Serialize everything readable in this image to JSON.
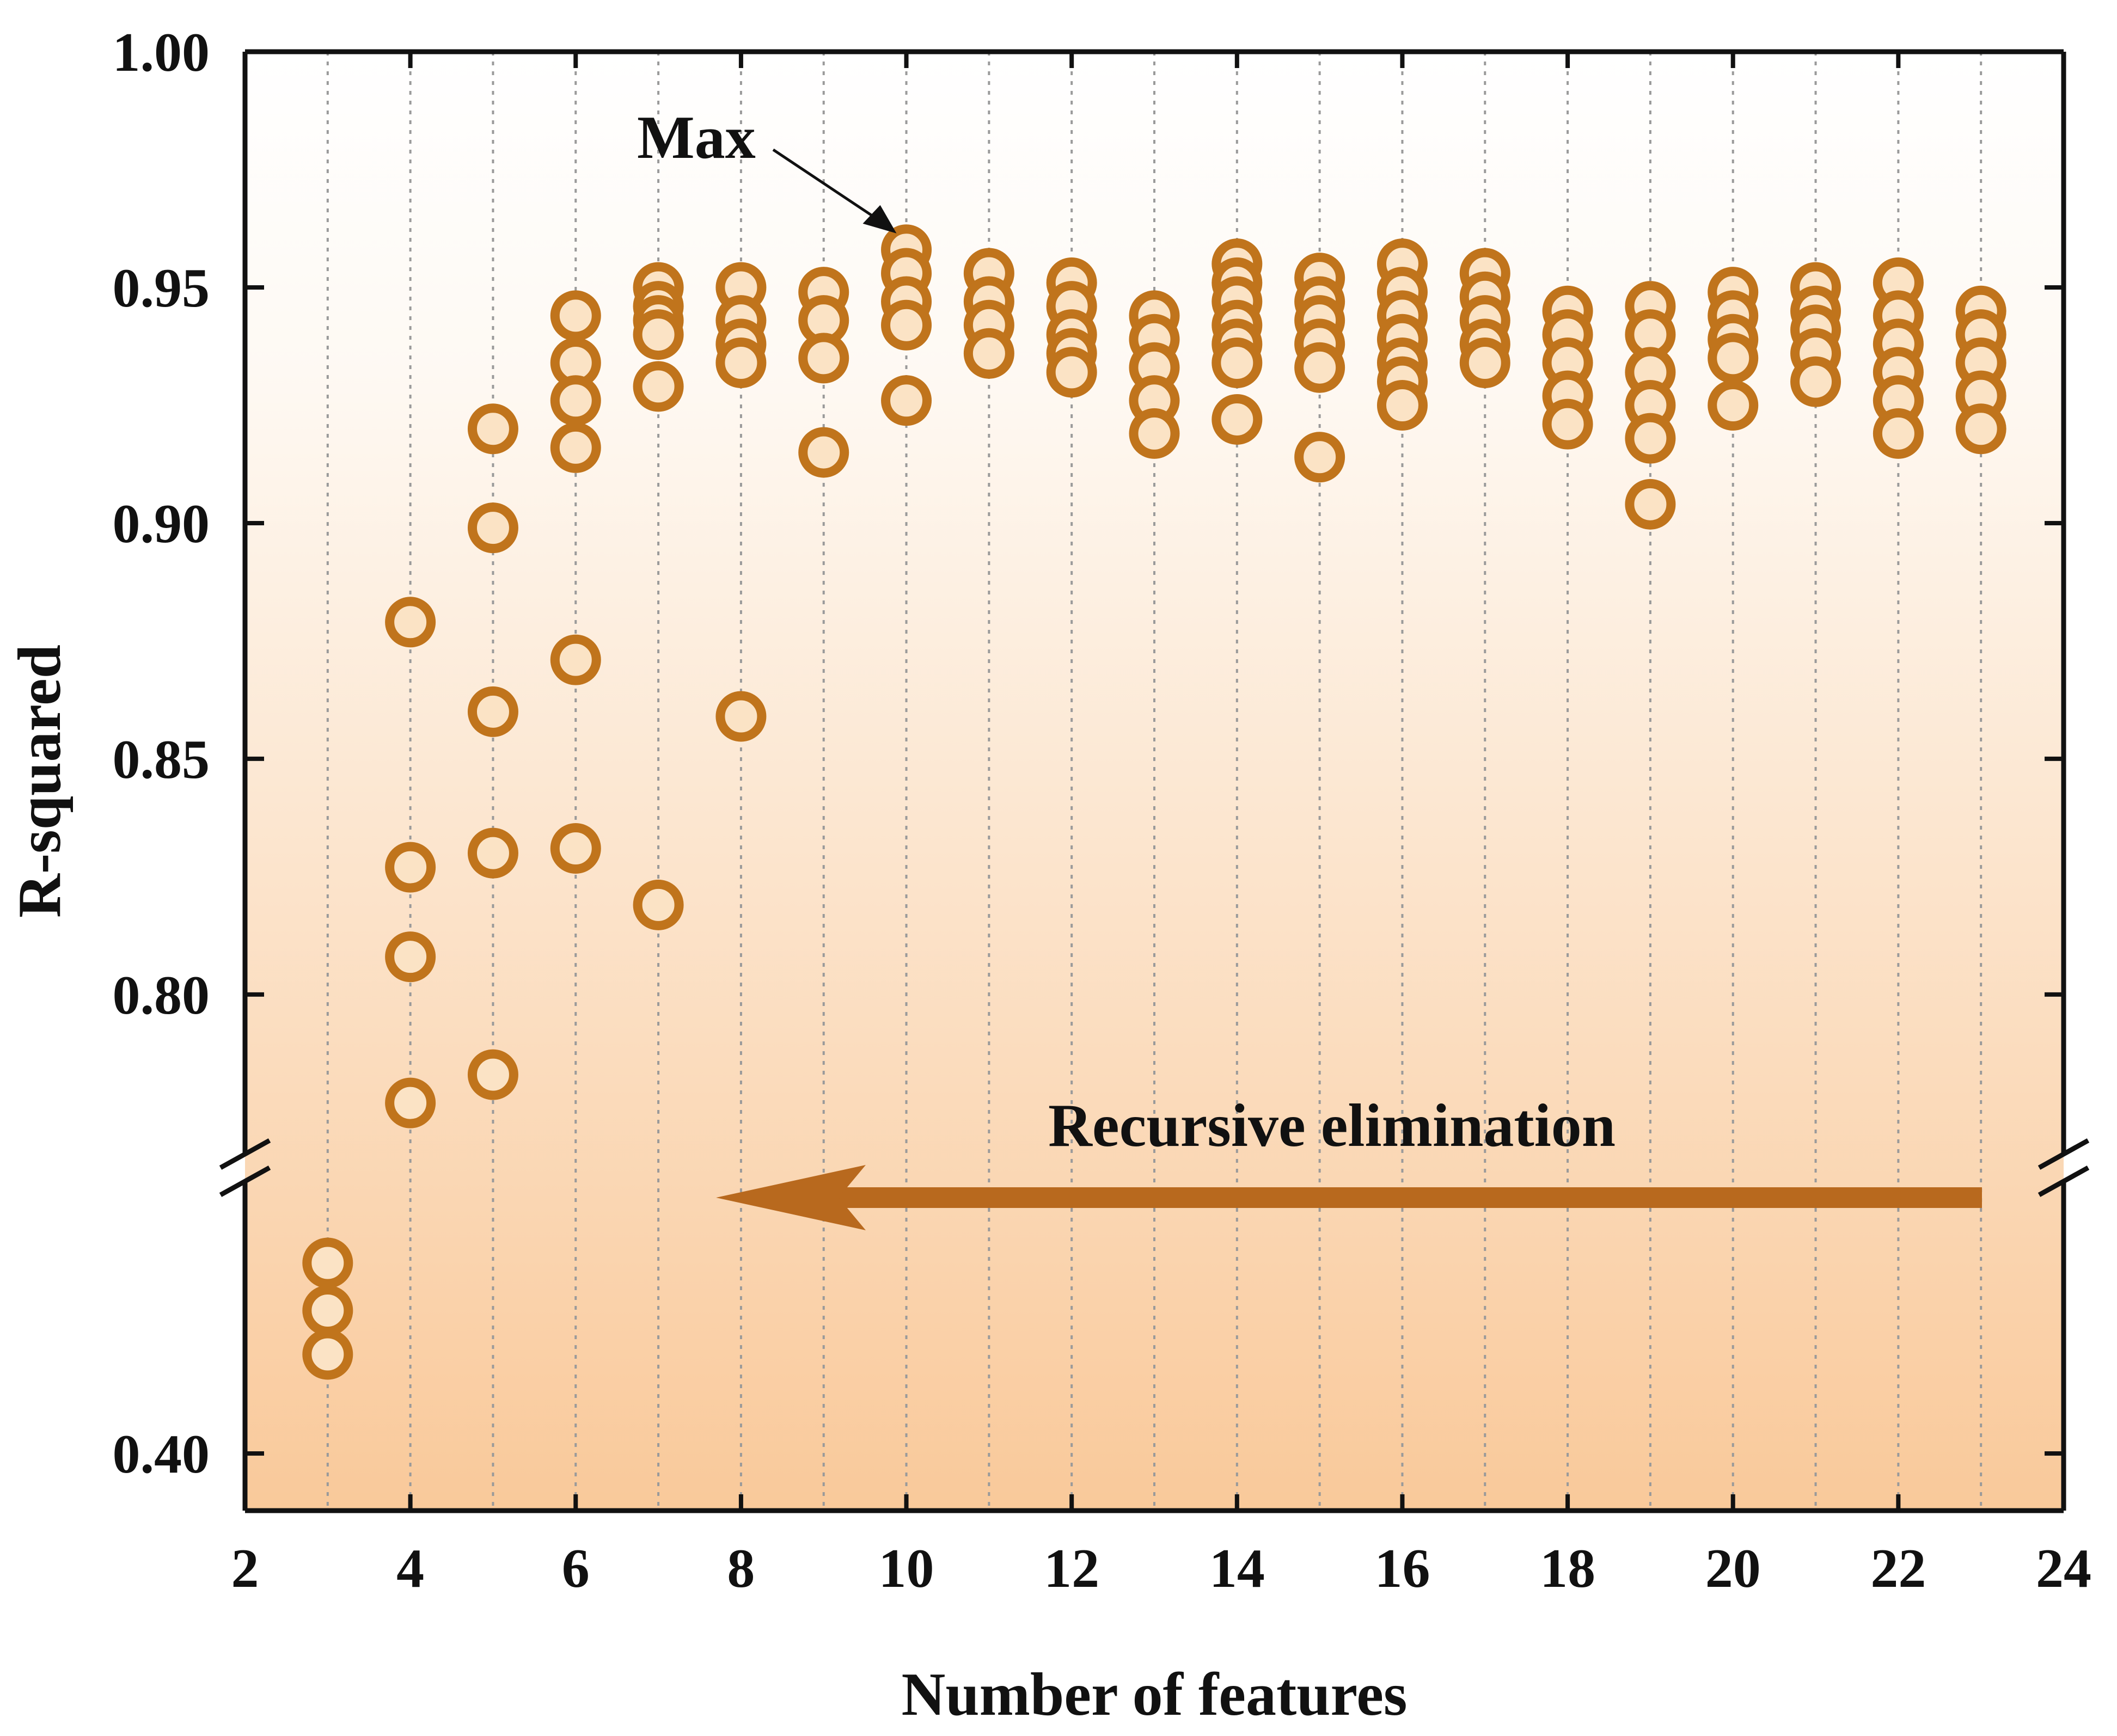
{
  "chart_data": {
    "type": "scatter",
    "title": "",
    "xlabel": "Number of features",
    "ylabel": "R-squared",
    "xlim": [
      2,
      24
    ],
    "x_ticks": [
      2,
      4,
      6,
      8,
      10,
      12,
      14,
      16,
      18,
      20,
      22,
      24
    ],
    "ylim_upper_segment": [
      0.765,
      1.0
    ],
    "ylim_lower_segment": [
      0.37,
      0.54
    ],
    "y_ticks_upper": [
      "0.80",
      "0.85",
      "0.90",
      "0.95",
      "1.00"
    ],
    "y_ticks_lower": [
      "0.40"
    ],
    "axis_break": true,
    "grid": "vertical dotted",
    "background": "vertical gradient white to light orange",
    "marker_color": "#c0741c",
    "marker_fill": "#fbe3c5",
    "arrow_color": "#b8691e",
    "annotations": {
      "max_label": "Max",
      "recursive_label": "Recursive elimination"
    },
    "max_point": {
      "x": 10,
      "y": 0.958
    },
    "series": [
      {
        "points": [
          {
            "x": 3,
            "y": 0.5
          },
          {
            "x": 3,
            "y": 0.475
          },
          {
            "x": 3,
            "y": 0.452
          },
          {
            "x": 4,
            "y": 0.879
          },
          {
            "x": 4,
            "y": 0.827
          },
          {
            "x": 4,
            "y": 0.808
          },
          {
            "x": 4,
            "y": 0.777
          },
          {
            "x": 5,
            "y": 0.92
          },
          {
            "x": 5,
            "y": 0.899
          },
          {
            "x": 5,
            "y": 0.86
          },
          {
            "x": 5,
            "y": 0.83
          },
          {
            "x": 5,
            "y": 0.783
          },
          {
            "x": 6,
            "y": 0.944
          },
          {
            "x": 6,
            "y": 0.934
          },
          {
            "x": 6,
            "y": 0.926
          },
          {
            "x": 6,
            "y": 0.916
          },
          {
            "x": 6,
            "y": 0.871
          },
          {
            "x": 6,
            "y": 0.831
          },
          {
            "x": 7,
            "y": 0.95
          },
          {
            "x": 7,
            "y": 0.946
          },
          {
            "x": 7,
            "y": 0.943
          },
          {
            "x": 7,
            "y": 0.94
          },
          {
            "x": 7,
            "y": 0.929
          },
          {
            "x": 7,
            "y": 0.819
          },
          {
            "x": 8,
            "y": 0.95
          },
          {
            "x": 8,
            "y": 0.943
          },
          {
            "x": 8,
            "y": 0.938
          },
          {
            "x": 8,
            "y": 0.934
          },
          {
            "x": 8,
            "y": 0.859
          },
          {
            "x": 9,
            "y": 0.949
          },
          {
            "x": 9,
            "y": 0.943
          },
          {
            "x": 9,
            "y": 0.935
          },
          {
            "x": 9,
            "y": 0.915
          },
          {
            "x": 10,
            "y": 0.958
          },
          {
            "x": 10,
            "y": 0.953
          },
          {
            "x": 10,
            "y": 0.947
          },
          {
            "x": 10,
            "y": 0.942
          },
          {
            "x": 10,
            "y": 0.926
          },
          {
            "x": 11,
            "y": 0.953
          },
          {
            "x": 11,
            "y": 0.947
          },
          {
            "x": 11,
            "y": 0.942
          },
          {
            "x": 11,
            "y": 0.936
          },
          {
            "x": 12,
            "y": 0.951
          },
          {
            "x": 12,
            "y": 0.946
          },
          {
            "x": 12,
            "y": 0.94
          },
          {
            "x": 12,
            "y": 0.936
          },
          {
            "x": 12,
            "y": 0.932
          },
          {
            "x": 13,
            "y": 0.944
          },
          {
            "x": 13,
            "y": 0.939
          },
          {
            "x": 13,
            "y": 0.933
          },
          {
            "x": 13,
            "y": 0.926
          },
          {
            "x": 13,
            "y": 0.919
          },
          {
            "x": 14,
            "y": 0.955
          },
          {
            "x": 14,
            "y": 0.951
          },
          {
            "x": 14,
            "y": 0.947
          },
          {
            "x": 14,
            "y": 0.942
          },
          {
            "x": 14,
            "y": 0.938
          },
          {
            "x": 14,
            "y": 0.934
          },
          {
            "x": 14,
            "y": 0.922
          },
          {
            "x": 15,
            "y": 0.952
          },
          {
            "x": 15,
            "y": 0.947
          },
          {
            "x": 15,
            "y": 0.943
          },
          {
            "x": 15,
            "y": 0.938
          },
          {
            "x": 15,
            "y": 0.933
          },
          {
            "x": 15,
            "y": 0.914
          },
          {
            "x": 16,
            "y": 0.955
          },
          {
            "x": 16,
            "y": 0.949
          },
          {
            "x": 16,
            "y": 0.944
          },
          {
            "x": 16,
            "y": 0.939
          },
          {
            "x": 16,
            "y": 0.934
          },
          {
            "x": 16,
            "y": 0.93
          },
          {
            "x": 16,
            "y": 0.925
          },
          {
            "x": 17,
            "y": 0.953
          },
          {
            "x": 17,
            "y": 0.948
          },
          {
            "x": 17,
            "y": 0.943
          },
          {
            "x": 17,
            "y": 0.938
          },
          {
            "x": 17,
            "y": 0.934
          },
          {
            "x": 18,
            "y": 0.945
          },
          {
            "x": 18,
            "y": 0.94
          },
          {
            "x": 18,
            "y": 0.934
          },
          {
            "x": 18,
            "y": 0.927
          },
          {
            "x": 18,
            "y": 0.921
          },
          {
            "x": 19,
            "y": 0.946
          },
          {
            "x": 19,
            "y": 0.94
          },
          {
            "x": 19,
            "y": 0.932
          },
          {
            "x": 19,
            "y": 0.925
          },
          {
            "x": 19,
            "y": 0.918
          },
          {
            "x": 19,
            "y": 0.904
          },
          {
            "x": 20,
            "y": 0.949
          },
          {
            "x": 20,
            "y": 0.944
          },
          {
            "x": 20,
            "y": 0.939
          },
          {
            "x": 20,
            "y": 0.935
          },
          {
            "x": 20,
            "y": 0.925
          },
          {
            "x": 21,
            "y": 0.95
          },
          {
            "x": 21,
            "y": 0.945
          },
          {
            "x": 21,
            "y": 0.941
          },
          {
            "x": 21,
            "y": 0.936
          },
          {
            "x": 21,
            "y": 0.93
          },
          {
            "x": 22,
            "y": 0.951
          },
          {
            "x": 22,
            "y": 0.944
          },
          {
            "x": 22,
            "y": 0.938
          },
          {
            "x": 22,
            "y": 0.932
          },
          {
            "x": 22,
            "y": 0.926
          },
          {
            "x": 22,
            "y": 0.919
          },
          {
            "x": 23,
            "y": 0.945
          },
          {
            "x": 23,
            "y": 0.94
          },
          {
            "x": 23,
            "y": 0.934
          },
          {
            "x": 23,
            "y": 0.927
          },
          {
            "x": 23,
            "y": 0.92
          }
        ]
      }
    ]
  }
}
